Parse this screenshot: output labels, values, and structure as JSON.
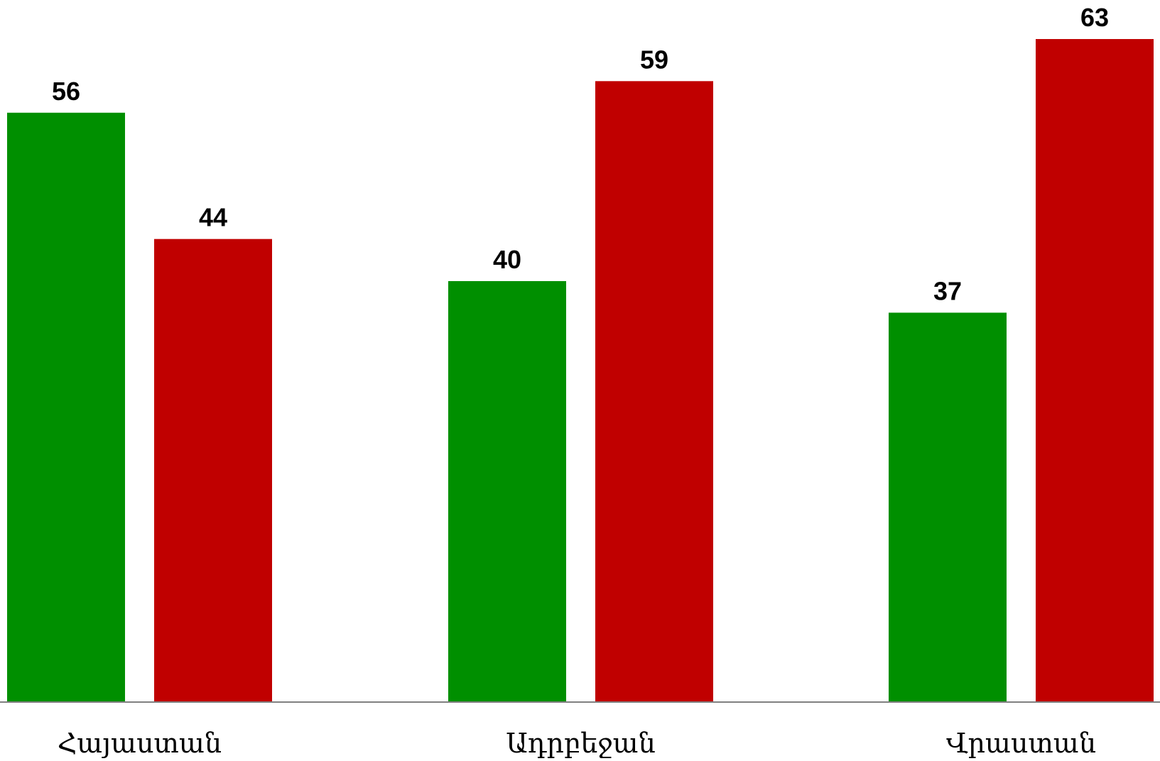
{
  "chart_data": {
    "type": "bar",
    "title": "",
    "xlabel": "",
    "ylabel": "",
    "categories": [
      "Հայաստան",
      "Ադրբեջան",
      "Վրաստան"
    ],
    "series": [
      {
        "color": "#008F00",
        "values": [
          56,
          40,
          37
        ]
      },
      {
        "color": "#C00000",
        "values": [
          44,
          59,
          63
        ]
      }
    ],
    "ylim": [
      0,
      63
    ],
    "grid": false,
    "legend": "none",
    "data_labels": true,
    "axis_color": "#808080"
  }
}
